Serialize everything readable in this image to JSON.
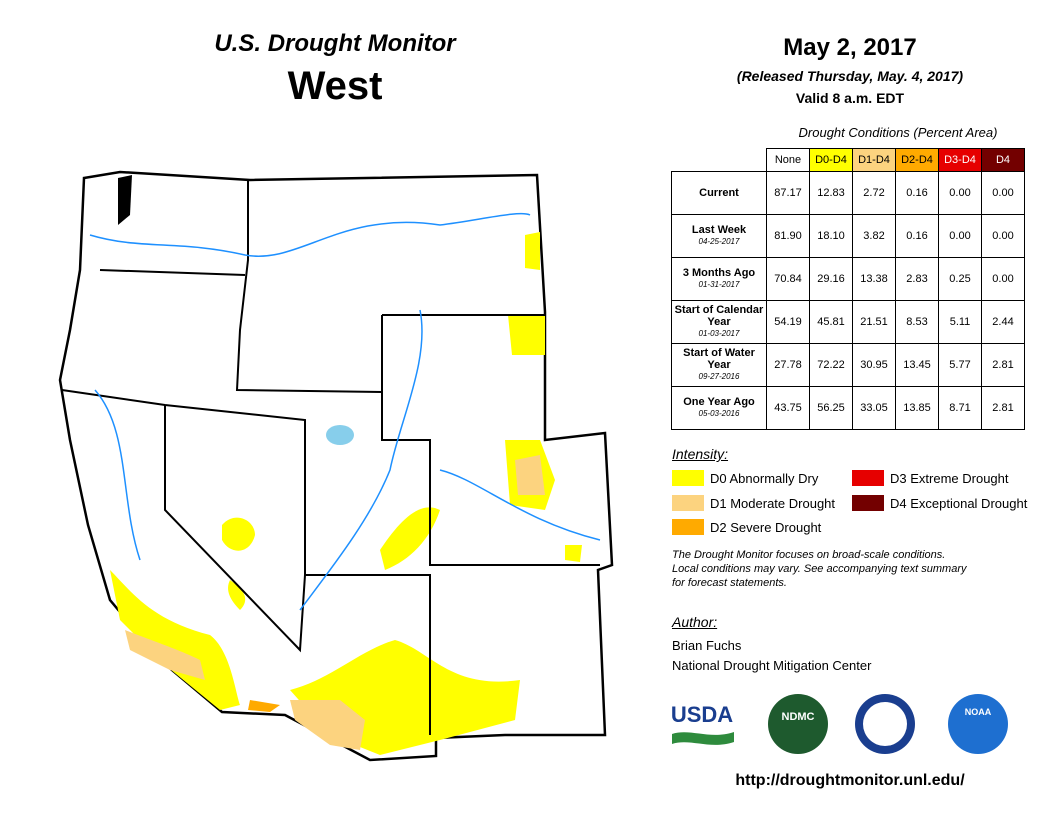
{
  "header": {
    "program": "U.S. Drought Monitor",
    "region": "West",
    "date": "May 2, 2017",
    "released": "(Released Thursday, May. 4, 2017)",
    "valid": "Valid 8 a.m. EDT"
  },
  "table": {
    "caption": "Drought Conditions (Percent Area)",
    "columns": [
      {
        "label": "None",
        "color": "#ffffff",
        "text_color": "#000000"
      },
      {
        "label": "D0-D4",
        "color": "#ffff00",
        "text_color": "#000000"
      },
      {
        "label": "D1-D4",
        "color": "#fcd37f",
        "text_color": "#000000"
      },
      {
        "label": "D2-D4",
        "color": "#ffaa00",
        "text_color": "#000000"
      },
      {
        "label": "D3-D4",
        "color": "#e60000",
        "text_color": "#ffffff"
      },
      {
        "label": "D4",
        "color": "#730000",
        "text_color": "#ffffff"
      }
    ],
    "rows": [
      {
        "label": "Current",
        "values": [
          "87.17",
          "12.83",
          "2.72",
          "0.16",
          "0.00",
          "0.00"
        ]
      },
      {
        "label": "Last Week",
        "date": "04-25-2017",
        "values": [
          "81.90",
          "18.10",
          "3.82",
          "0.16",
          "0.00",
          "0.00"
        ]
      },
      {
        "label": "3 Months Ago",
        "date": "01-31-2017",
        "values": [
          "70.84",
          "29.16",
          "13.38",
          "2.83",
          "0.25",
          "0.00"
        ]
      },
      {
        "label": "Start of Calendar Year",
        "date": "01-03-2017",
        "values": [
          "54.19",
          "45.81",
          "21.51",
          "8.53",
          "5.11",
          "2.44"
        ]
      },
      {
        "label": "Start of Water Year",
        "date": "09-27-2016",
        "values": [
          "27.78",
          "72.22",
          "30.95",
          "13.45",
          "5.77",
          "2.81"
        ]
      },
      {
        "label": "One Year Ago",
        "date": "05-03-2016",
        "values": [
          "43.75",
          "56.25",
          "33.05",
          "13.85",
          "8.71",
          "2.81"
        ]
      }
    ]
  },
  "legend": {
    "title": "Intensity:",
    "items": [
      {
        "label": "D0 Abnormally Dry",
        "color": "#ffff00"
      },
      {
        "label": "D1 Moderate Drought",
        "color": "#fcd37f"
      },
      {
        "label": "D2 Severe Drought",
        "color": "#ffaa00"
      },
      {
        "label": "D3 Extreme Drought",
        "color": "#e60000"
      },
      {
        "label": "D4 Exceptional Drought",
        "color": "#730000"
      }
    ]
  },
  "note": [
    "The Drought Monitor focuses on broad-scale conditions.",
    "Local conditions may vary. See accompanying text summary",
    "for forecast statements."
  ],
  "author": {
    "title": "Author:",
    "lines": [
      "Brian Fuchs",
      "National Drought Mitigation Center"
    ]
  },
  "logos": [
    "USDA",
    "NDMC",
    "NOAA"
  ],
  "url": "http://droughtmonitor.unl.edu/"
}
